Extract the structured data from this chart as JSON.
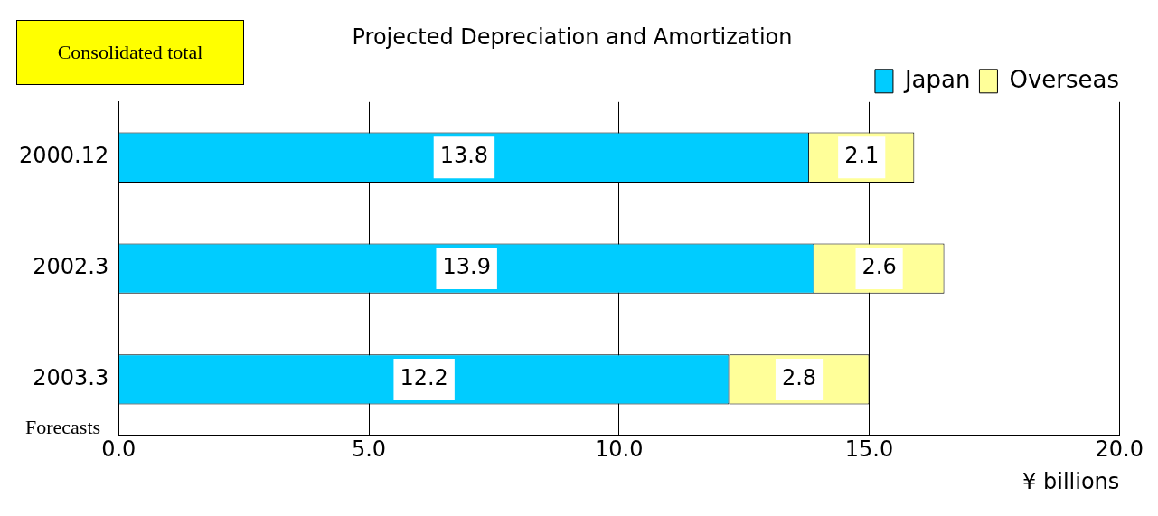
{
  "chart_data": {
    "type": "bar",
    "orientation": "horizontal",
    "stacked": true,
    "title": "Projected Depreciation and Amortization",
    "xlabel": "¥ billions",
    "categories": [
      "2000.12",
      "2002.3",
      "2003.3"
    ],
    "series": [
      {
        "name": "Japan",
        "color": "#00ccff",
        "values": [
          13.8,
          13.9,
          12.2
        ]
      },
      {
        "name": "Overseas",
        "color": "#ffff99",
        "values": [
          2.1,
          2.6,
          2.8
        ]
      }
    ],
    "xlim": [
      0,
      20
    ],
    "xticks": [
      {
        "value": 0,
        "label": "0.0"
      },
      {
        "value": 5,
        "label": "5.0"
      },
      {
        "value": 10,
        "label": "10.0"
      },
      {
        "value": 15,
        "label": "15.0"
      },
      {
        "value": 20,
        "label": "20.0"
      }
    ],
    "grid": "x",
    "legend": "top right",
    "data_labels": true,
    "annotations": [
      "Consolidated total",
      "Forecasts"
    ]
  }
}
